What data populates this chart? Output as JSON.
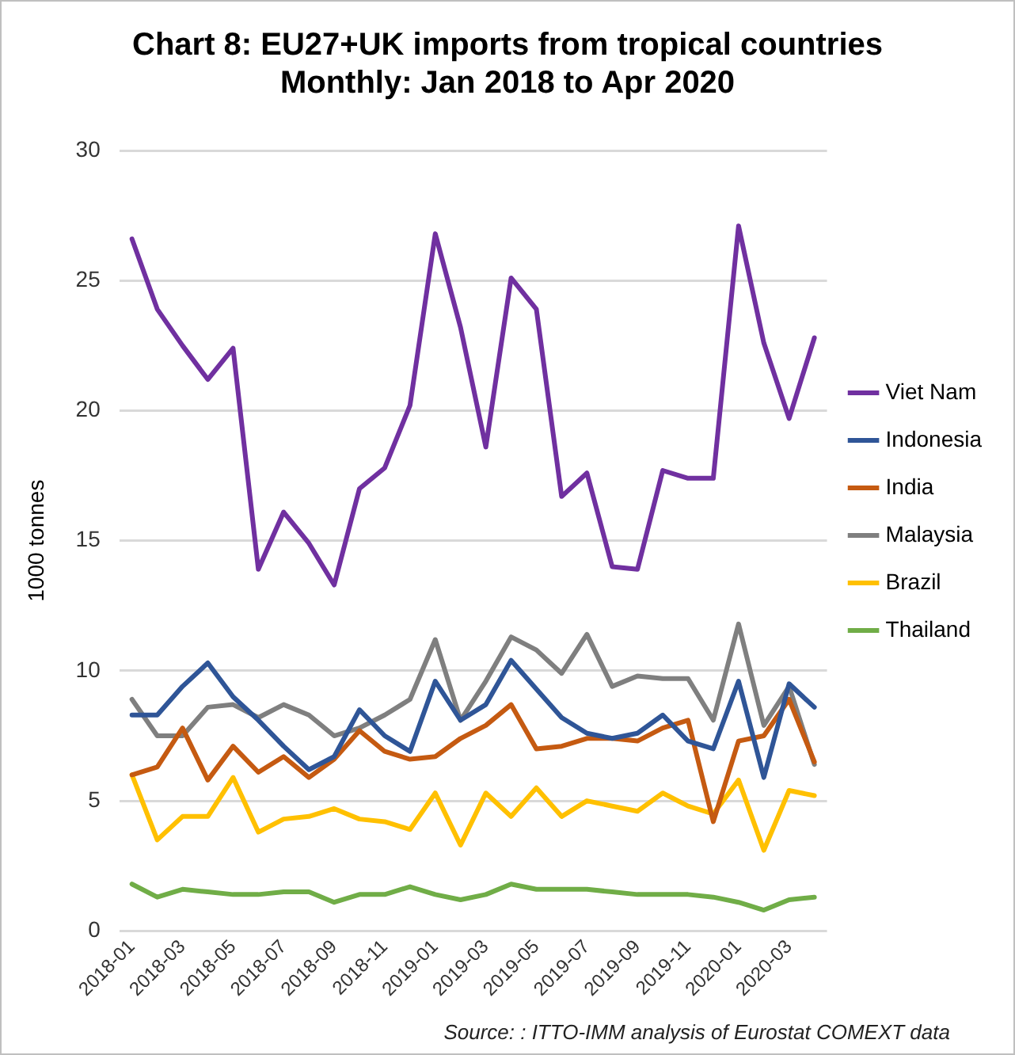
{
  "chart_data": {
    "type": "line",
    "title": "Chart 8: EU27+UK imports from tropical countries",
    "subtitle": "Monthly: Jan 2018 to Apr 2020",
    "ylabel": "1000 tonnes",
    "categories": [
      "2018-01",
      null,
      "2018-03",
      null,
      "2018-05",
      null,
      "2018-07",
      null,
      "2018-09",
      null,
      "2018-11",
      null,
      "2019-01",
      null,
      "2019-03",
      null,
      "2019-05",
      null,
      "2019-07",
      null,
      "2019-09",
      null,
      "2019-11",
      null,
      "2020-01",
      null,
      "2020-03",
      null
    ],
    "series": [
      {
        "name": "Viet Nam",
        "color": "#7030a0",
        "values": [
          26.6,
          23.9,
          22.5,
          21.2,
          22.4,
          13.9,
          16.1,
          14.9,
          13.3,
          17.0,
          17.8,
          20.2,
          26.8,
          23.2,
          18.6,
          25.1,
          23.9,
          16.7,
          17.6,
          14.0,
          13.9,
          17.7,
          17.4,
          17.4,
          27.1,
          22.6,
          19.7,
          22.8
        ]
      },
      {
        "name": "Indonesia",
        "color": "#2f5597",
        "values": [
          8.3,
          8.3,
          9.4,
          10.3,
          9.0,
          8.1,
          7.1,
          6.2,
          6.7,
          8.5,
          7.5,
          6.9,
          9.6,
          8.1,
          8.7,
          10.4,
          9.3,
          8.2,
          7.6,
          7.4,
          7.6,
          8.3,
          7.3,
          7.0,
          9.6,
          5.9,
          9.5,
          8.6
        ]
      },
      {
        "name": "India",
        "color": "#c55a11",
        "values": [
          6.0,
          6.3,
          7.8,
          5.8,
          7.1,
          6.1,
          6.7,
          5.9,
          6.6,
          7.7,
          6.9,
          6.6,
          6.7,
          7.4,
          7.9,
          8.7,
          7.0,
          7.1,
          7.4,
          7.4,
          7.3,
          7.8,
          8.1,
          4.2,
          7.3,
          7.5,
          8.9,
          6.5
        ]
      },
      {
        "name": "Malaysia",
        "color": "#7f7f7f",
        "values": [
          8.9,
          7.5,
          7.5,
          8.6,
          8.7,
          8.2,
          8.7,
          8.3,
          7.5,
          7.8,
          8.3,
          8.9,
          11.2,
          8.1,
          9.6,
          11.3,
          10.8,
          9.9,
          11.4,
          9.4,
          9.8,
          9.7,
          9.7,
          8.1,
          11.8,
          7.9,
          9.4,
          6.4
        ]
      },
      {
        "name": "Brazil",
        "color": "#ffc000",
        "values": [
          6.0,
          3.5,
          4.4,
          4.4,
          5.9,
          3.8,
          4.3,
          4.4,
          4.7,
          4.3,
          4.2,
          3.9,
          5.3,
          3.3,
          5.3,
          4.4,
          5.5,
          4.4,
          5.0,
          4.8,
          4.6,
          5.3,
          4.8,
          4.5,
          5.8,
          3.1,
          5.4,
          5.2
        ]
      },
      {
        "name": "Thailand",
        "color": "#70ad47",
        "values": [
          1.8,
          1.3,
          1.6,
          1.5,
          1.4,
          1.4,
          1.5,
          1.5,
          1.1,
          1.4,
          1.4,
          1.7,
          1.4,
          1.2,
          1.4,
          1.8,
          1.6,
          1.6,
          1.6,
          1.5,
          1.4,
          1.4,
          1.4,
          1.3,
          1.1,
          0.8,
          1.2,
          1.3
        ]
      }
    ],
    "ylim": [
      0,
      30
    ],
    "yticks": [
      0,
      5,
      10,
      15,
      20,
      25,
      30
    ],
    "grid": "y",
    "legend": "right",
    "marker": "none",
    "line_style": "solid",
    "annotations": [
      "Source: : ITTO-IMM analysis of Eurostat COMEXT data"
    ]
  }
}
